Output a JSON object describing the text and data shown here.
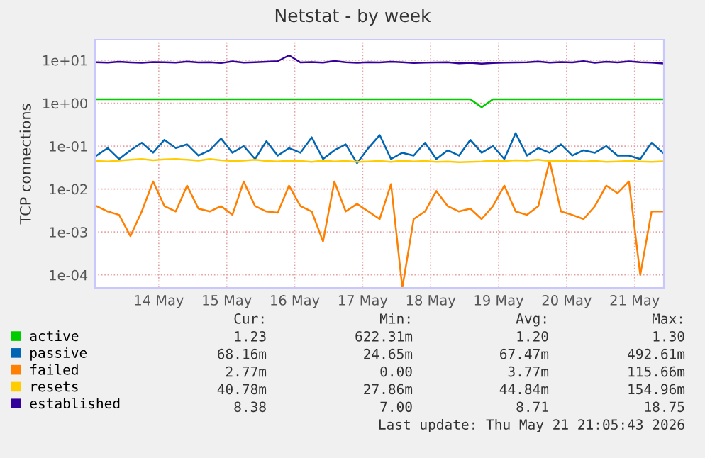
{
  "chart_data": {
    "type": "line",
    "title": "Netstat - by week",
    "ylabel": "TCP connections",
    "x": [
      "2026-05-13T14:00",
      "2026-05-13T18:00",
      "2026-05-13T22:00",
      "2026-05-14T02:00",
      "2026-05-14T06:00",
      "2026-05-14T10:00",
      "2026-05-14T14:00",
      "2026-05-14T18:00",
      "2026-05-14T22:00",
      "2026-05-15T02:00",
      "2026-05-15T06:00",
      "2026-05-15T10:00",
      "2026-05-15T14:00",
      "2026-05-15T18:00",
      "2026-05-15T22:00",
      "2026-05-16T02:00",
      "2026-05-16T06:00",
      "2026-05-16T10:00",
      "2026-05-16T14:00",
      "2026-05-16T18:00",
      "2026-05-16T22:00",
      "2026-05-17T02:00",
      "2026-05-17T06:00",
      "2026-05-17T10:00",
      "2026-05-17T14:00",
      "2026-05-17T18:00",
      "2026-05-17T22:00",
      "2026-05-18T02:00",
      "2026-05-18T06:00",
      "2026-05-18T10:00",
      "2026-05-18T14:00",
      "2026-05-18T18:00",
      "2026-05-18T22:00",
      "2026-05-19T02:00",
      "2026-05-19T06:00",
      "2026-05-19T10:00",
      "2026-05-19T14:00",
      "2026-05-19T18:00",
      "2026-05-19T22:00",
      "2026-05-20T02:00",
      "2026-05-20T06:00",
      "2026-05-20T10:00",
      "2026-05-20T14:00",
      "2026-05-20T18:00",
      "2026-05-20T22:00",
      "2026-05-21T02:00",
      "2026-05-21T06:00",
      "2026-05-21T10:00",
      "2026-05-21T14:00",
      "2026-05-21T18:00",
      "2026-05-21T22:00"
    ],
    "series": [
      {
        "name": "active",
        "color": "#00cc00",
        "values": [
          1.23,
          1.23,
          1.23,
          1.23,
          1.23,
          1.23,
          1.23,
          1.23,
          1.23,
          1.23,
          1.23,
          1.23,
          1.23,
          1.23,
          1.23,
          1.23,
          1.23,
          1.23,
          1.23,
          1.23,
          1.23,
          1.23,
          1.23,
          1.23,
          1.23,
          1.23,
          1.23,
          1.23,
          1.23,
          1.23,
          1.23,
          1.23,
          1.23,
          1.23,
          0.8,
          1.23,
          1.23,
          1.23,
          1.23,
          1.23,
          1.23,
          1.23,
          1.23,
          1.23,
          1.23,
          1.23,
          1.23,
          1.23,
          1.23,
          1.23,
          1.23
        ]
      },
      {
        "name": "passive",
        "color": "#0066b3",
        "values": [
          0.06,
          0.09,
          0.05,
          0.08,
          0.12,
          0.07,
          0.14,
          0.09,
          0.11,
          0.06,
          0.08,
          0.15,
          0.07,
          0.1,
          0.05,
          0.13,
          0.06,
          0.09,
          0.07,
          0.16,
          0.05,
          0.08,
          0.11,
          0.04,
          0.09,
          0.18,
          0.05,
          0.07,
          0.06,
          0.12,
          0.05,
          0.08,
          0.06,
          0.14,
          0.07,
          0.1,
          0.05,
          0.2,
          0.06,
          0.09,
          0.07,
          0.11,
          0.06,
          0.08,
          0.07,
          0.1,
          0.06,
          0.06,
          0.05,
          0.12,
          0.07
        ]
      },
      {
        "name": "failed",
        "color": "#ff8000",
        "values": [
          0.004,
          0.003,
          0.0025,
          0.0008,
          0.003,
          0.015,
          0.004,
          0.003,
          0.012,
          0.0035,
          0.003,
          0.004,
          0.0025,
          0.015,
          0.004,
          0.003,
          0.0028,
          0.012,
          0.004,
          0.003,
          0.0006,
          0.015,
          0.003,
          0.0045,
          0.003,
          0.002,
          0.013,
          5e-05,
          0.002,
          0.003,
          0.009,
          0.004,
          0.003,
          0.0035,
          0.002,
          0.004,
          0.012,
          0.003,
          0.0025,
          0.004,
          0.045,
          0.003,
          0.0025,
          0.002,
          0.004,
          0.012,
          0.008,
          0.015,
          0.0001,
          0.003,
          0.003
        ]
      },
      {
        "name": "resets",
        "color": "#ffcc00",
        "values": [
          0.045,
          0.044,
          0.046,
          0.048,
          0.05,
          0.047,
          0.049,
          0.05,
          0.048,
          0.046,
          0.05,
          0.047,
          0.045,
          0.046,
          0.048,
          0.045,
          0.044,
          0.046,
          0.045,
          0.043,
          0.046,
          0.044,
          0.045,
          0.043,
          0.044,
          0.045,
          0.043,
          0.046,
          0.044,
          0.045,
          0.043,
          0.044,
          0.042,
          0.043,
          0.044,
          0.046,
          0.045,
          0.047,
          0.046,
          0.048,
          0.045,
          0.046,
          0.045,
          0.044,
          0.045,
          0.043,
          0.044,
          0.045,
          0.044,
          0.043,
          0.044
        ]
      },
      {
        "name": "established",
        "color": "#330099",
        "values": [
          9.0,
          8.8,
          9.2,
          8.9,
          8.7,
          9.1,
          9.0,
          8.8,
          9.3,
          8.9,
          9.0,
          8.6,
          9.4,
          8.8,
          9.0,
          9.2,
          9.5,
          13.0,
          8.9,
          9.1,
          8.8,
          9.6,
          9.0,
          8.7,
          9.0,
          8.9,
          9.2,
          9.0,
          8.6,
          8.8,
          8.9,
          9.0,
          8.5,
          8.7,
          8.3,
          8.6,
          8.8,
          8.9,
          9.0,
          9.3,
          8.8,
          9.1,
          8.9,
          9.5,
          8.7,
          9.2,
          8.9,
          9.4,
          9.0,
          8.8,
          8.4
        ]
      }
    ],
    "log": "y",
    "ylim": [
      5e-05,
      30
    ],
    "yticks": [
      {
        "value": 10,
        "label": "1e+01"
      },
      {
        "value": 1,
        "label": "1e+00"
      },
      {
        "value": 0.1,
        "label": "1e-01"
      },
      {
        "value": 0.01,
        "label": "1e-02"
      },
      {
        "value": 0.001,
        "label": "1e-03"
      },
      {
        "value": 0.0001,
        "label": "1e-04"
      }
    ],
    "xlim": [
      "2026-05-13T13:30",
      "2026-05-21T22:20"
    ],
    "xticks": [
      {
        "value": "2026-05-14T12:00",
        "label": "14 May"
      },
      {
        "value": "2026-05-15T12:00",
        "label": "15 May"
      },
      {
        "value": "2026-05-16T12:00",
        "label": "16 May"
      },
      {
        "value": "2026-05-17T12:00",
        "label": "17 May"
      },
      {
        "value": "2026-05-18T12:00",
        "label": "18 May"
      },
      {
        "value": "2026-05-19T12:00",
        "label": "19 May"
      },
      {
        "value": "2026-05-20T12:00",
        "label": "20 May"
      },
      {
        "value": "2026-05-21T12:00",
        "label": "21 May"
      }
    ],
    "grid": true,
    "legend": "bottom left",
    "marker": "none",
    "line_style": "solid",
    "annotations": [
      "Cur:",
      "Min:",
      "Avg:",
      "Max:",
      "1.23",
      "622.31m",
      "1.20",
      "1.30",
      "68.16m",
      "24.65m",
      "67.47m",
      "492.61m",
      "2.77m",
      "0.00",
      "3.77m",
      "115.66m",
      "40.78m",
      "27.86m",
      "44.84m",
      "154.96m",
      "8.38",
      "7.00",
      "8.71",
      "18.75",
      "Last update: Thu May 21 21:05:43 2026"
    ]
  }
}
